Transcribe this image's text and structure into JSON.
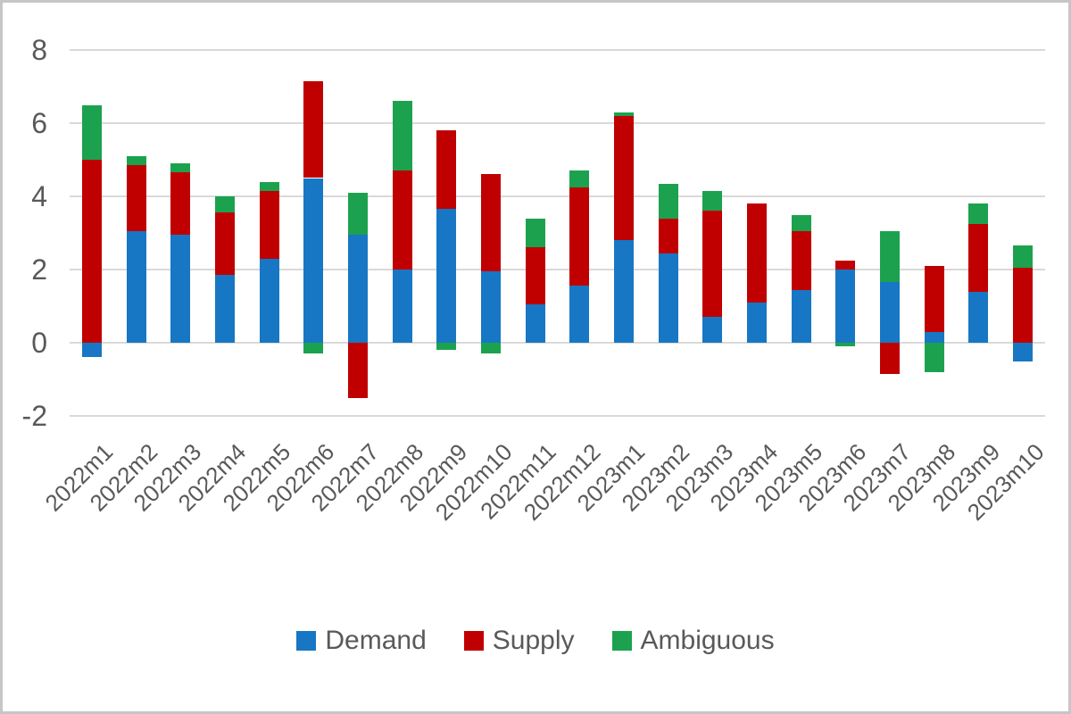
{
  "chart_data": {
    "type": "bar",
    "stacked": true,
    "title": "",
    "xlabel": "",
    "ylabel": "",
    "grid": true,
    "legend_position": "bottom",
    "ylim": [
      -2,
      8
    ],
    "yticks": [
      8,
      6,
      4,
      2,
      0,
      -2
    ],
    "categories": [
      "2022m1",
      "2022m2",
      "2022m3",
      "2022m4",
      "2022m5",
      "2022m6",
      "2022m7",
      "2022m8",
      "2022m9",
      "2022m10",
      "2022m11",
      "2022m12",
      "2023m1",
      "2023m2",
      "2023m3",
      "2023m4",
      "2023m5",
      "2023m6",
      "2023m7",
      "2023m8",
      "2023m9",
      "2023m10"
    ],
    "series": [
      {
        "name": "Demand",
        "color": "#1777c4",
        "values": [
          -0.4,
          3.05,
          2.95,
          1.85,
          2.3,
          4.5,
          2.95,
          2.0,
          3.65,
          1.95,
          1.05,
          1.55,
          2.8,
          2.45,
          0.7,
          1.1,
          1.45,
          2.0,
          1.65,
          0.3,
          1.4,
          -0.5
        ]
      },
      {
        "name": "Supply",
        "color": "#c00000",
        "values": [
          5.0,
          1.8,
          1.7,
          1.7,
          1.85,
          2.65,
          -1.5,
          2.7,
          2.15,
          2.65,
          1.55,
          2.7,
          3.4,
          0.95,
          2.9,
          2.7,
          1.6,
          0.25,
          -0.85,
          1.8,
          1.85,
          2.05
        ]
      },
      {
        "name": "Ambiguous",
        "color": "#1ca24e",
        "values": [
          1.5,
          0.25,
          0.25,
          0.45,
          0.25,
          -0.3,
          1.15,
          1.9,
          -0.2,
          -0.3,
          0.8,
          0.45,
          0.1,
          0.95,
          0.55,
          0,
          0.45,
          -0.1,
          1.4,
          -0.8,
          0.55,
          0.6
        ]
      }
    ],
    "colors": {
      "gridline": "#d9d9d9",
      "axis_text": "#595959",
      "frame_border": "#c6c6c6",
      "background": "#ffffff"
    }
  }
}
